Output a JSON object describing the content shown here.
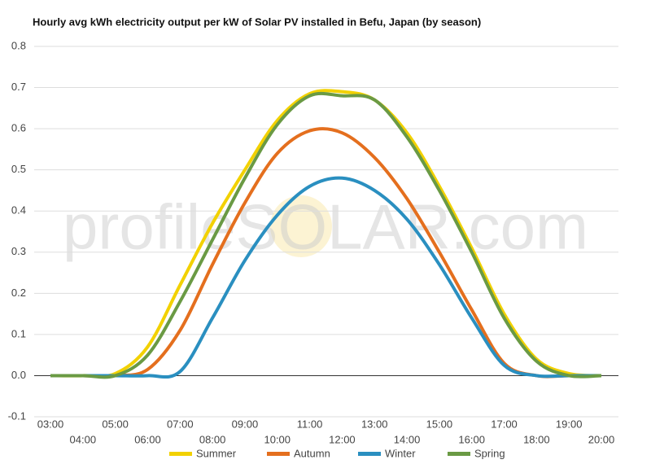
{
  "chart_data": {
    "type": "line",
    "title": "Hourly avg kWh electricity output per kW of Solar PV installed in Befu, Japan (by season)",
    "watermark": "profileSOLAR.com",
    "categories": [
      "03:00",
      "04:00",
      "05:00",
      "06:00",
      "07:00",
      "08:00",
      "09:00",
      "10:00",
      "11:00",
      "12:00",
      "13:00",
      "14:00",
      "15:00",
      "16:00",
      "17:00",
      "18:00",
      "19:00",
      "20:00"
    ],
    "series": [
      {
        "name": "Summer",
        "color": "#f2d100",
        "values": [
          0,
          0,
          0.005,
          0.07,
          0.22,
          0.37,
          0.5,
          0.62,
          0.685,
          0.69,
          0.67,
          0.59,
          0.46,
          0.31,
          0.15,
          0.04,
          0.005,
          0
        ]
      },
      {
        "name": "Autumn",
        "color": "#e46f1e",
        "values": [
          0,
          0,
          0,
          0.015,
          0.11,
          0.27,
          0.42,
          0.54,
          0.595,
          0.59,
          0.53,
          0.43,
          0.3,
          0.16,
          0.03,
          0,
          0,
          0
        ]
      },
      {
        "name": "Winter",
        "color": "#2a8fc0",
        "values": [
          0,
          0,
          0,
          0,
          0.01,
          0.14,
          0.28,
          0.39,
          0.46,
          0.48,
          0.45,
          0.38,
          0.27,
          0.14,
          0.025,
          0,
          0,
          0
        ]
      },
      {
        "name": "Spring",
        "color": "#6a9a44",
        "values": [
          0,
          0,
          0,
          0.05,
          0.18,
          0.33,
          0.48,
          0.61,
          0.68,
          0.68,
          0.67,
          0.58,
          0.45,
          0.3,
          0.14,
          0.035,
          0,
          0
        ]
      }
    ],
    "ylim": [
      -0.1,
      0.8
    ],
    "yticks": [
      -0.1,
      {
        "value": 0,
        "label": "0.0"
      },
      0.1,
      0.2,
      0.3,
      0.4,
      0.5,
      0.6,
      0.7,
      0.8
    ],
    "grid": true,
    "legend": "bottom"
  }
}
